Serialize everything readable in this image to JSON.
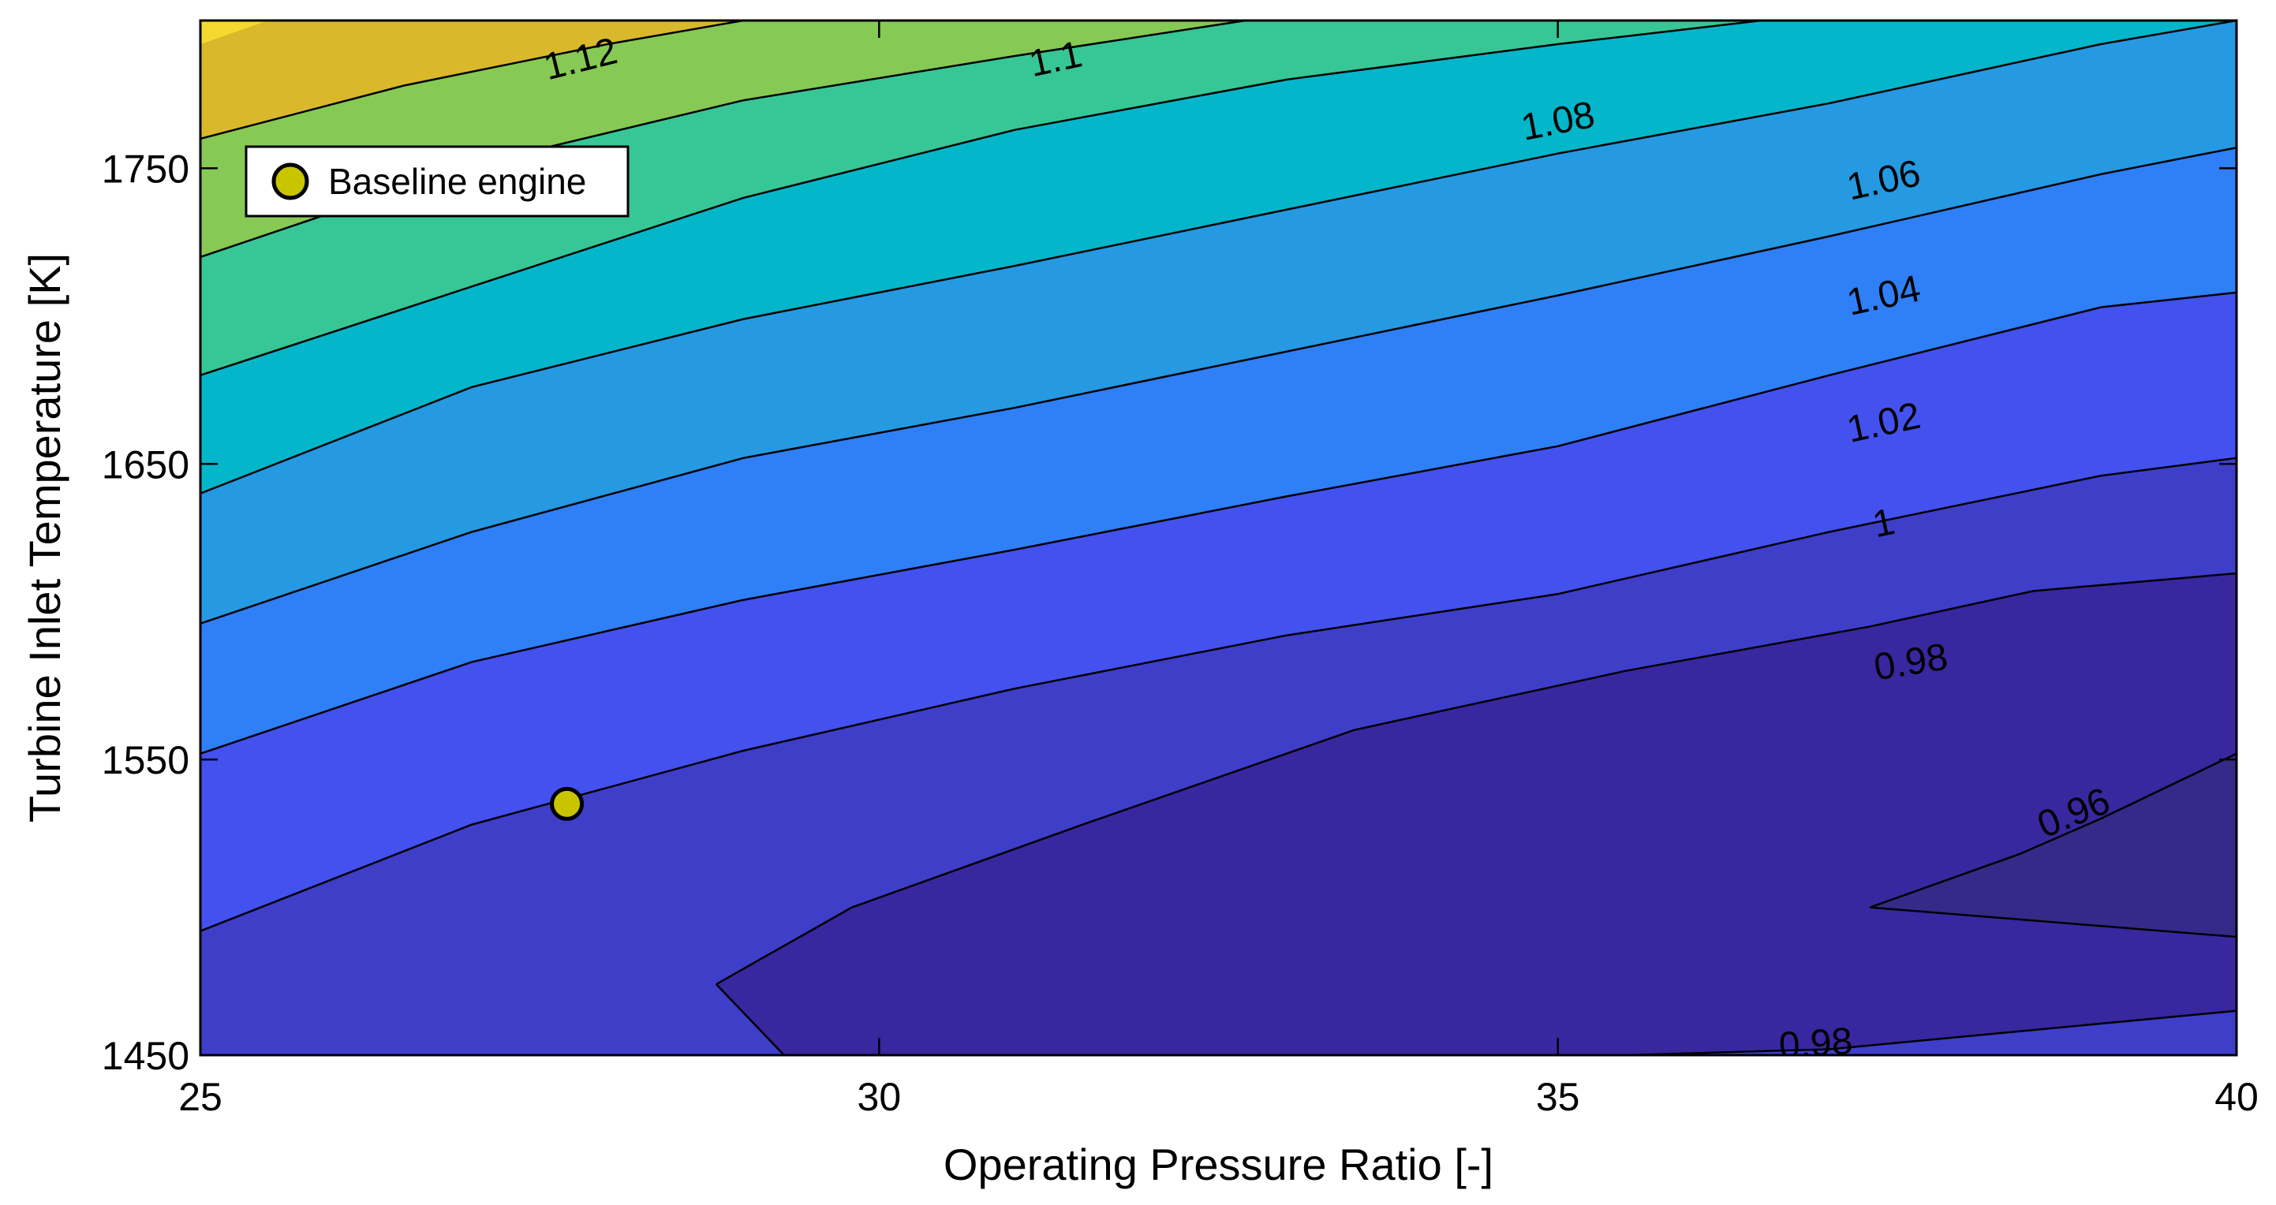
{
  "chart_data": {
    "type": "contour",
    "xlabel": "Operating Pressure Ratio [-]",
    "ylabel": "Turbine Inlet Temperature [K]",
    "xlim": [
      25,
      40
    ],
    "ylim": [
      1450,
      1800
    ],
    "xticks": [
      25,
      30,
      35,
      40
    ],
    "yticks": [
      1450,
      1550,
      1650,
      1750
    ],
    "colormap": "parula",
    "contour_levels": [
      {
        "label": "0.96",
        "color_above": "#38279e",
        "points": [
          [
            35.5,
            1450
          ],
          [
            36.5,
            1452
          ],
          [
            37.3,
            1500
          ],
          [
            38.4,
            1518
          ],
          [
            39.0,
            1530
          ],
          [
            40.0,
            1552
          ]
        ]
      },
      {
        "label": "0.98",
        "color_above": "#3e3ec9",
        "points": [
          [
            25,
            1450
          ],
          [
            28.8,
            1474
          ],
          [
            29.8,
            1500
          ],
          [
            31.5,
            1528
          ],
          [
            33.5,
            1560
          ],
          [
            35.5,
            1580
          ],
          [
            37.3,
            1595
          ],
          [
            38.5,
            1607
          ],
          [
            40.0,
            1613
          ]
        ]
      },
      {
        "label": "1",
        "color_above": "#4351ef",
        "points": [
          [
            25,
            1492
          ],
          [
            27,
            1528
          ],
          [
            29,
            1553
          ],
          [
            31,
            1574
          ],
          [
            33,
            1592
          ],
          [
            35,
            1606
          ],
          [
            37,
            1627
          ],
          [
            39,
            1646
          ],
          [
            40,
            1652
          ]
        ]
      },
      {
        "label": "1.02",
        "color_above": "#2f7ff7",
        "points": [
          [
            25,
            1552
          ],
          [
            27,
            1583
          ],
          [
            29,
            1604
          ],
          [
            31,
            1621
          ],
          [
            33,
            1639
          ],
          [
            35,
            1656
          ],
          [
            37,
            1680
          ],
          [
            39,
            1703
          ],
          [
            40,
            1708
          ]
        ]
      },
      {
        "label": "1.04",
        "color_above": "#2599e1",
        "points": [
          [
            25,
            1596
          ],
          [
            27,
            1627
          ],
          [
            29,
            1652
          ],
          [
            31,
            1669
          ],
          [
            33,
            1688
          ],
          [
            35,
            1707
          ],
          [
            37,
            1727
          ],
          [
            39,
            1748
          ],
          [
            40,
            1757
          ]
        ]
      },
      {
        "label": "1.06",
        "color_above": "#04b6c9",
        "points": [
          [
            25,
            1640
          ],
          [
            27,
            1676
          ],
          [
            29,
            1699
          ],
          [
            31,
            1717
          ],
          [
            33,
            1736
          ],
          [
            35,
            1755
          ],
          [
            37,
            1772
          ],
          [
            39,
            1792
          ],
          [
            40,
            1800
          ]
        ]
      },
      {
        "label": "1.08",
        "color_above": "#37c696",
        "points": [
          [
            25,
            1680
          ],
          [
            27,
            1710
          ],
          [
            29,
            1740
          ],
          [
            31,
            1763
          ],
          [
            33,
            1780
          ],
          [
            35,
            1792
          ],
          [
            36.5,
            1800
          ]
        ]
      },
      {
        "label": "1.1",
        "color_above": "#86c954",
        "points": [
          [
            25,
            1720
          ],
          [
            27,
            1751
          ],
          [
            29,
            1773
          ],
          [
            31,
            1788
          ],
          [
            32.7,
            1800
          ]
        ]
      },
      {
        "label": "1.12",
        "color_above": "#dab82b",
        "points": [
          [
            25,
            1760
          ],
          [
            26.5,
            1778
          ],
          [
            28,
            1792
          ],
          [
            29,
            1800
          ]
        ]
      },
      {
        "label": "",
        "color_above": "#f6d92e",
        "points": [
          [
            25,
            1792
          ],
          [
            25.5,
            1800
          ]
        ]
      }
    ],
    "base_color": "#38279e",
    "base_upper_color": "#3e3ec9",
    "contour_label_positions": [
      {
        "label": "1.12",
        "x": 27.8,
        "y": 1787,
        "angle": -14
      },
      {
        "label": "1.1",
        "x": 31.3,
        "y": 1787,
        "angle": -12
      },
      {
        "label": "1.08",
        "x": 35.0,
        "y": 1766,
        "angle": -11
      },
      {
        "label": "1.06",
        "x": 37.4,
        "y": 1746,
        "angle": -12
      },
      {
        "label": "1.04",
        "x": 37.4,
        "y": 1707,
        "angle": -12
      },
      {
        "label": "1.02",
        "x": 37.4,
        "y": 1664,
        "angle": -12
      },
      {
        "label": "1",
        "x": 37.4,
        "y": 1630,
        "angle": -12
      },
      {
        "label": "0.98",
        "x": 37.6,
        "y": 1583,
        "angle": -9
      },
      {
        "label": "0.96",
        "x": 38.8,
        "y": 1532,
        "angle": -22
      },
      {
        "label": "0.98",
        "x": 36.9,
        "y": 1454,
        "angle": -4
      }
    ],
    "markers": [
      {
        "name": "Baseline engine",
        "x": 27.7,
        "y": 1535,
        "color": "#c9c400"
      }
    ],
    "legend": {
      "entries": [
        "Baseline engine"
      ],
      "placement": "top-left"
    }
  }
}
